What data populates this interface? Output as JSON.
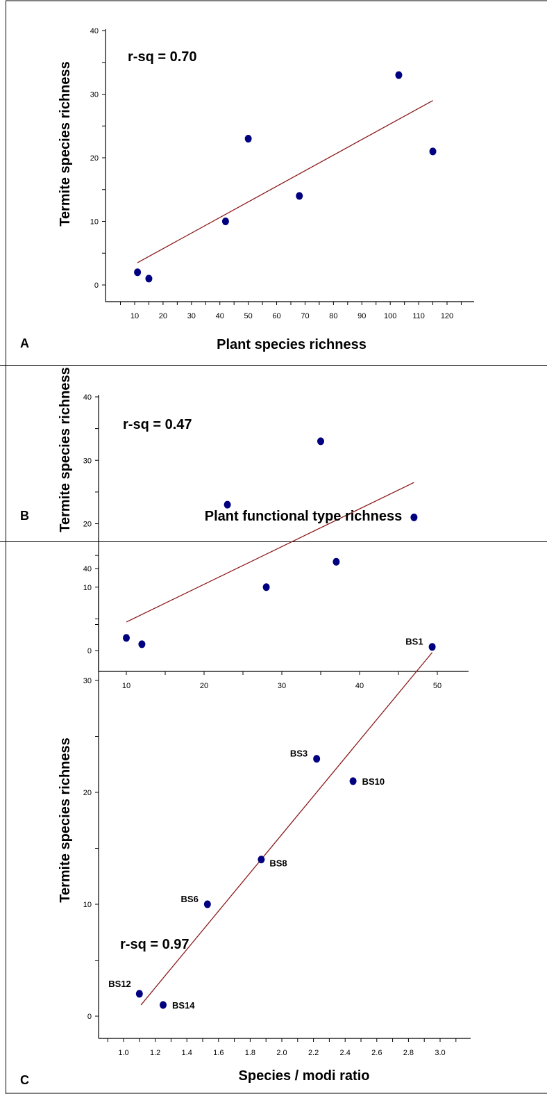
{
  "colors": {
    "points": "#000080",
    "fit_line": "#8b1a1a",
    "axes": "#000000",
    "border": "#000000"
  },
  "chart_data": [
    {
      "type": "scatter",
      "panel_label": "A",
      "annotation": "r-sq = 0.70",
      "xlabel": "Plant species richness",
      "ylabel": "Termite species richness",
      "xlim": [
        0,
        130
      ],
      "ylim": [
        -3,
        40
      ],
      "xticks": [
        10,
        20,
        30,
        40,
        50,
        60,
        70,
        80,
        90,
        100,
        110,
        120
      ],
      "yticks": [
        0,
        10,
        20,
        30,
        40
      ],
      "points": [
        {
          "x": 11,
          "y": 2
        },
        {
          "x": 15,
          "y": 1
        },
        {
          "x": 42,
          "y": 10
        },
        {
          "x": 50,
          "y": 23
        },
        {
          "x": 68,
          "y": 14
        },
        {
          "x": 103,
          "y": 33
        },
        {
          "x": 115,
          "y": 21
        }
      ],
      "fit_line": [
        {
          "x": 11,
          "y": 3.5
        },
        {
          "x": 115,
          "y": 29
        }
      ]
    },
    {
      "type": "scatter",
      "panel_label": "B",
      "annotation": "r-sq = 0.47",
      "xlabel": "Plant functional type richness",
      "ylabel": "Termite species richness",
      "xlim": [
        5,
        55
      ],
      "ylim": [
        -3,
        40
      ],
      "xticks": [
        10,
        20,
        30,
        40,
        50
      ],
      "yticks": [
        0,
        10,
        20,
        30,
        40
      ],
      "points": [
        {
          "x": 10,
          "y": 2
        },
        {
          "x": 12,
          "y": 1
        },
        {
          "x": 23,
          "y": 23
        },
        {
          "x": 28,
          "y": 10
        },
        {
          "x": 35,
          "y": 33
        },
        {
          "x": 37,
          "y": 14
        },
        {
          "x": 47,
          "y": 21
        }
      ],
      "fit_line": [
        {
          "x": 10,
          "y": 4.5
        },
        {
          "x": 47,
          "y": 26.5
        }
      ]
    },
    {
      "type": "scatter",
      "panel_label": "C",
      "annotation": "r-sq = 0.97",
      "xlabel": "Species / modi ratio",
      "ylabel": "Termite species richness",
      "xlim": [
        0.9,
        3.2
      ],
      "ylim": [
        -3,
        40
      ],
      "xticks": [
        1.0,
        1.2,
        1.4,
        1.6,
        1.8,
        2.0,
        2.2,
        2.4,
        2.6,
        2.8,
        3.0
      ],
      "xtick_labels": [
        "1.0",
        "1.2",
        "1.4",
        "1.6",
        "1.8",
        "2.0",
        "2.2",
        "2.4",
        "2.6",
        "2.8",
        "3.0"
      ],
      "yticks": [
        0,
        10,
        20,
        30,
        40
      ],
      "points": [
        {
          "x": 1.1,
          "y": 2,
          "label": "BS12",
          "label_pos": "upper-left"
        },
        {
          "x": 1.25,
          "y": 1,
          "label": "BS14",
          "label_pos": "right"
        },
        {
          "x": 1.53,
          "y": 10,
          "label": "BS6",
          "label_pos": "left"
        },
        {
          "x": 1.87,
          "y": 14,
          "label": "BS8",
          "label_pos": "lower-right"
        },
        {
          "x": 2.22,
          "y": 23,
          "label": "BS3",
          "label_pos": "left"
        },
        {
          "x": 2.45,
          "y": 21,
          "label": "BS10",
          "label_pos": "right"
        },
        {
          "x": 2.95,
          "y": 33,
          "label": "BS1",
          "label_pos": "left"
        }
      ],
      "fit_line": [
        {
          "x": 1.11,
          "y": 1
        },
        {
          "x": 2.95,
          "y": 32.5
        }
      ]
    }
  ]
}
